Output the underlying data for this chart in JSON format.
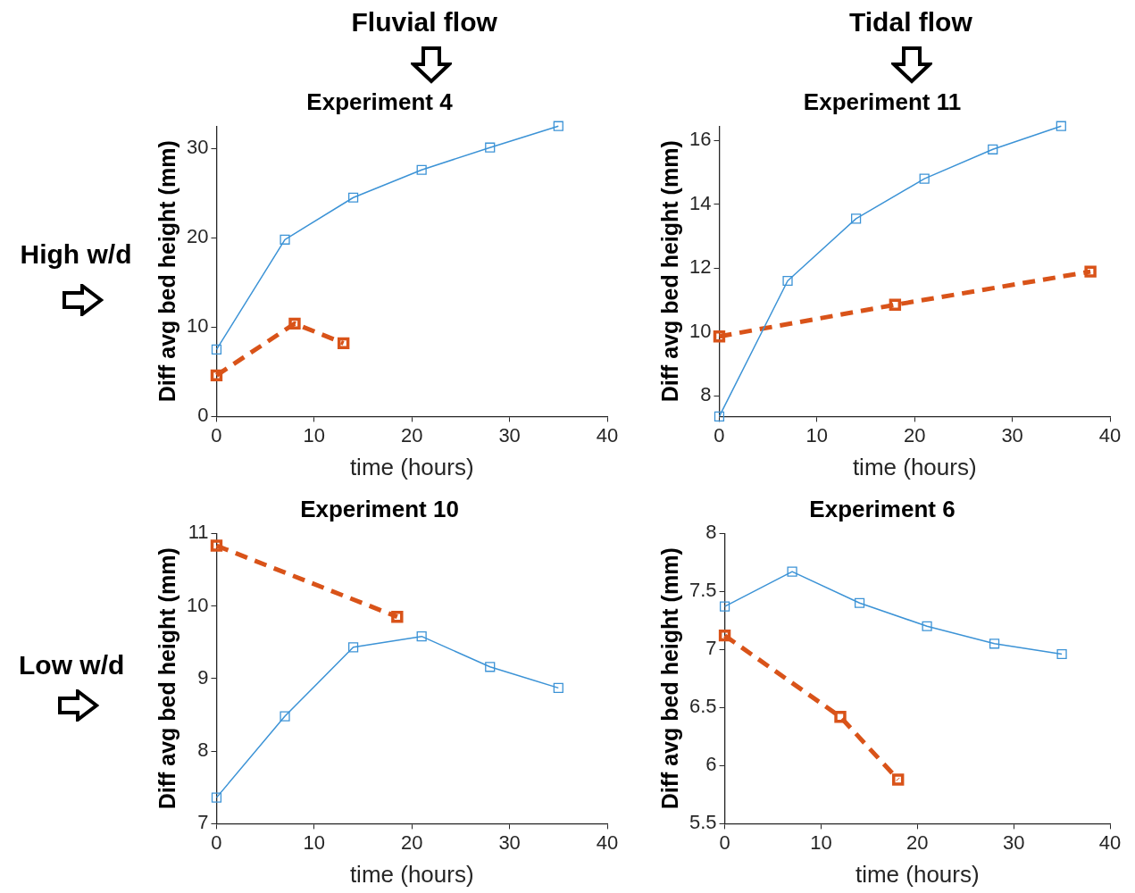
{
  "chart_data": [
    {
      "type": "line",
      "title": "Experiment 4",
      "xlabel": "time (hours)",
      "ylabel": "Diff avg bed height (mm)",
      "xlim": [
        0,
        40
      ],
      "xticks": [
        0,
        10,
        20,
        30,
        40
      ],
      "ylim": [
        0,
        32.5
      ],
      "yticks": [
        0,
        10,
        20,
        30
      ],
      "marker": "square",
      "grid": false,
      "legend": false,
      "annotations": [
        "Fluvial flow",
        "High w/d"
      ],
      "series": [
        {
          "color": "#3c93d6",
          "line_style": "solid",
          "x": [
            0,
            7,
            14,
            21,
            28,
            35
          ],
          "values": [
            7.5,
            19.8,
            24.5,
            27.6,
            30.1,
            32.5
          ]
        },
        {
          "color": "#d95319",
          "line_style": "dashed",
          "x": [
            0,
            8,
            13
          ],
          "values": [
            4.6,
            10.4,
            8.2
          ]
        }
      ]
    },
    {
      "type": "line",
      "title": "Experiment 11",
      "xlabel": "time (hours)",
      "ylabel": "Diff avg bed height (mm)",
      "xlim": [
        0,
        40
      ],
      "xticks": [
        0,
        10,
        20,
        30,
        40
      ],
      "ylim": [
        7.35,
        16.45
      ],
      "yticks": [
        8,
        10,
        12,
        14,
        16
      ],
      "marker": "square",
      "grid": false,
      "legend": false,
      "annotations": [
        "Tidal flow"
      ],
      "series": [
        {
          "color": "#3c93d6",
          "line_style": "solid",
          "x": [
            0,
            7,
            14,
            21,
            28,
            35
          ],
          "values": [
            7.35,
            11.6,
            13.55,
            14.8,
            15.72,
            16.45
          ]
        },
        {
          "color": "#d95319",
          "line_style": "dashed",
          "x": [
            0,
            18,
            38
          ],
          "values": [
            9.86,
            10.85,
            11.89
          ]
        }
      ]
    },
    {
      "type": "line",
      "title": "Experiment 10",
      "xlabel": "time (hours)",
      "ylabel": "Diff avg bed height (mm)",
      "xlim": [
        0,
        40
      ],
      "xticks": [
        0,
        10,
        20,
        30,
        40
      ],
      "ylim": [
        7,
        11
      ],
      "yticks": [
        7,
        8,
        9,
        10,
        11
      ],
      "marker": "square",
      "grid": false,
      "legend": false,
      "annotations": [
        "Low w/d"
      ],
      "series": [
        {
          "color": "#3c93d6",
          "line_style": "solid",
          "x": [
            0,
            7,
            14,
            21,
            28,
            35
          ],
          "values": [
            7.36,
            8.48,
            9.43,
            9.58,
            9.16,
            8.87
          ]
        },
        {
          "color": "#d95319",
          "line_style": "dashed",
          "x": [
            0,
            18.5
          ],
          "values": [
            10.83,
            9.85
          ]
        }
      ]
    },
    {
      "type": "line",
      "title": "Experiment 6",
      "xlabel": "time (hours)",
      "ylabel": "Diff avg bed height (mm)",
      "xlim": [
        0,
        40
      ],
      "xticks": [
        0,
        10,
        20,
        30,
        40
      ],
      "ylim": [
        5.5,
        8
      ],
      "yticks": [
        5.5,
        6,
        6.5,
        7,
        7.5,
        8
      ],
      "marker": "square",
      "grid": false,
      "legend": false,
      "series": [
        {
          "color": "#3c93d6",
          "line_style": "solid",
          "x": [
            0,
            7,
            14,
            21,
            28,
            35
          ],
          "values": [
            7.37,
            7.67,
            7.4,
            7.2,
            7.05,
            6.96
          ]
        },
        {
          "color": "#d95319",
          "line_style": "dashed",
          "x": [
            0,
            12,
            18
          ],
          "values": [
            7.12,
            6.42,
            5.88
          ]
        }
      ]
    }
  ]
}
